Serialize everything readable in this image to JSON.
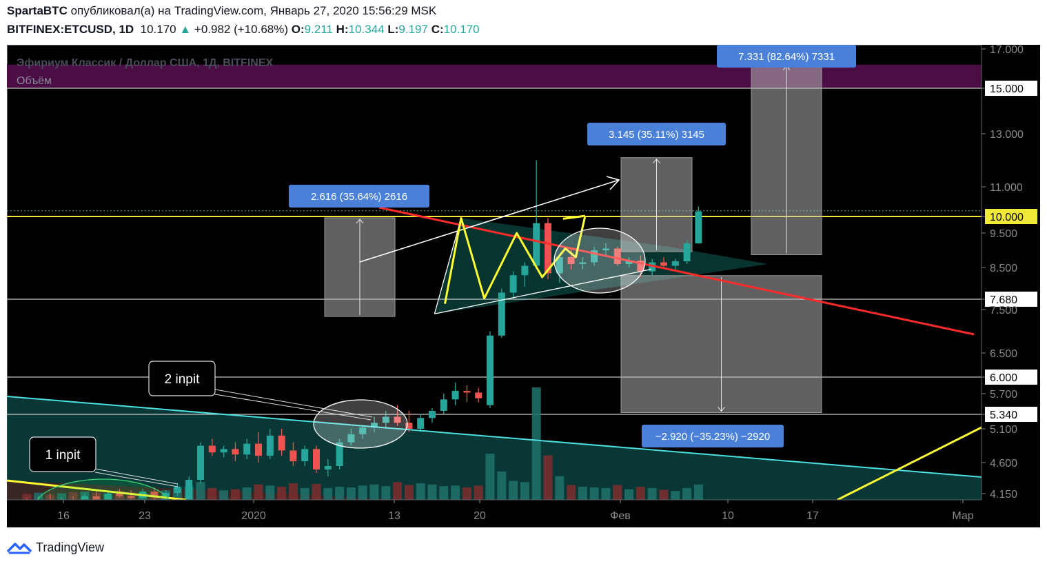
{
  "header": {
    "author": "SpartaBTC",
    "published_text": "опубликовал(а) на TradingView.com, Январь 27, 2020 15:56:29 MSK",
    "symbol": "BITFINEX:ETCUSD, 1D",
    "last": "10.170",
    "change": "+0.982 (+10.68%)",
    "o_label": "O:",
    "o": "9.211",
    "h_label": "H:",
    "h": "10.344",
    "l_label": "L:",
    "l": "9.197",
    "c_label": "C:",
    "c": "10.170"
  },
  "legend": {
    "series_title": "Эфириум Классик / Доллар США, 1Д, BITFINEX",
    "volume_title": "Объём"
  },
  "footer": {
    "brand": "TradingView",
    "icon": "tradingview-cloud-icon"
  },
  "colors": {
    "up": "#26a69a",
    "down": "#ef5350",
    "background": "#000000",
    "resistance": "#ff2a2a",
    "support": "#4ce0e0",
    "pattern": "#ffff33",
    "label_bg": "#4a80d8"
  },
  "chart_data": {
    "type": "candlestick",
    "price_axis_ticks": [
      "17.000",
      "15.000",
      "13.000",
      "11.000",
      "10.000",
      "9.500",
      "8.500",
      "7.680",
      "7.500",
      "6.500",
      "6.000",
      "5.700",
      "5.340",
      "5.100",
      "4.600",
      "4.150"
    ],
    "price_axis_highlighted": [
      "15.000",
      "10.000",
      "7.680",
      "6.000",
      "5.340"
    ],
    "time_axis_ticks": [
      "16",
      "23",
      "2020",
      "13",
      "20",
      "Фев",
      "10",
      "17",
      "Мар"
    ],
    "horizontal_levels": [
      15.0,
      10.0,
      7.68,
      6.0,
      5.34
    ],
    "measurements": [
      {
        "label": "2.616 (35.64%) 2616",
        "from": 7.34,
        "to": 9.96
      },
      {
        "label": "3.145 (35.11%) 3145",
        "from": 8.96,
        "to": 12.1
      },
      {
        "label": "7.331 (82.64%) 7331",
        "from": 8.87,
        "to": 16.2
      },
      {
        "label": "−2.920 (−35.23%) −2920",
        "from": 8.29,
        "to": 5.37
      }
    ],
    "annotations": [
      "1 inpit",
      "2 inpit"
    ],
    "candles": [
      {
        "o": 4.05,
        "h": 4.1,
        "l": 3.98,
        "c": 4.03,
        "v": 1.0
      },
      {
        "o": 4.03,
        "h": 4.12,
        "l": 3.96,
        "c": 4.08,
        "v": 1.2
      },
      {
        "o": 4.08,
        "h": 4.15,
        "l": 3.98,
        "c": 4.01,
        "v": 0.9
      },
      {
        "o": 4.01,
        "h": 4.1,
        "l": 3.95,
        "c": 4.06,
        "v": 1.1
      },
      {
        "o": 4.06,
        "h": 4.12,
        "l": 4.0,
        "c": 4.04,
        "v": 1.3
      },
      {
        "o": 4.04,
        "h": 4.15,
        "l": 3.99,
        "c": 4.12,
        "v": 1.4
      },
      {
        "o": 4.12,
        "h": 4.2,
        "l": 4.05,
        "c": 4.08,
        "v": 1.2
      },
      {
        "o": 4.08,
        "h": 4.18,
        "l": 4.02,
        "c": 4.15,
        "v": 1.1
      },
      {
        "o": 4.15,
        "h": 4.22,
        "l": 4.1,
        "c": 4.12,
        "v": 1.5
      },
      {
        "o": 4.12,
        "h": 4.2,
        "l": 4.04,
        "c": 4.1,
        "v": 1.3
      },
      {
        "o": 4.1,
        "h": 4.22,
        "l": 4.05,
        "c": 4.18,
        "v": 1.2
      },
      {
        "o": 4.18,
        "h": 4.24,
        "l": 4.08,
        "c": 4.12,
        "v": 1.4
      },
      {
        "o": 4.12,
        "h": 4.2,
        "l": 4.04,
        "c": 4.16,
        "v": 1.6
      },
      {
        "o": 4.16,
        "h": 4.3,
        "l": 4.12,
        "c": 4.25,
        "v": 2.0
      },
      {
        "o": 4.05,
        "h": 4.4,
        "l": 3.95,
        "c": 4.35,
        "v": 2.3
      },
      {
        "o": 4.35,
        "h": 4.9,
        "l": 4.3,
        "c": 4.85,
        "v": 3.0
      },
      {
        "o": 4.85,
        "h": 4.95,
        "l": 4.7,
        "c": 4.75,
        "v": 2.0
      },
      {
        "o": 4.75,
        "h": 4.85,
        "l": 4.68,
        "c": 4.8,
        "v": 1.6
      },
      {
        "o": 4.8,
        "h": 4.9,
        "l": 4.62,
        "c": 4.72,
        "v": 1.8
      },
      {
        "o": 4.72,
        "h": 4.95,
        "l": 4.65,
        "c": 4.88,
        "v": 2.1
      },
      {
        "o": 4.88,
        "h": 5.05,
        "l": 4.6,
        "c": 4.7,
        "v": 2.6
      },
      {
        "o": 4.7,
        "h": 5.1,
        "l": 4.65,
        "c": 5.0,
        "v": 2.4
      },
      {
        "o": 5.0,
        "h": 5.1,
        "l": 4.7,
        "c": 4.78,
        "v": 2.2
      },
      {
        "o": 4.78,
        "h": 4.9,
        "l": 4.55,
        "c": 4.62,
        "v": 2.8
      },
      {
        "o": 4.62,
        "h": 4.85,
        "l": 4.55,
        "c": 4.8,
        "v": 2.0
      },
      {
        "o": 4.8,
        "h": 4.85,
        "l": 4.45,
        "c": 4.5,
        "v": 2.7
      },
      {
        "o": 4.5,
        "h": 4.65,
        "l": 4.4,
        "c": 4.55,
        "v": 2.0
      },
      {
        "o": 4.55,
        "h": 4.95,
        "l": 4.5,
        "c": 4.9,
        "v": 2.2
      },
      {
        "o": 4.9,
        "h": 5.1,
        "l": 4.85,
        "c": 5.02,
        "v": 2.1
      },
      {
        "o": 5.02,
        "h": 5.15,
        "l": 4.95,
        "c": 5.12,
        "v": 2.4
      },
      {
        "o": 5.12,
        "h": 5.3,
        "l": 5.05,
        "c": 5.2,
        "v": 2.6
      },
      {
        "o": 5.2,
        "h": 5.4,
        "l": 5.1,
        "c": 5.3,
        "v": 2.3
      },
      {
        "o": 5.3,
        "h": 5.5,
        "l": 5.15,
        "c": 5.2,
        "v": 3.0
      },
      {
        "o": 5.2,
        "h": 5.4,
        "l": 5.05,
        "c": 5.1,
        "v": 2.5
      },
      {
        "o": 5.1,
        "h": 5.35,
        "l": 5.05,
        "c": 5.28,
        "v": 2.8
      },
      {
        "o": 5.28,
        "h": 5.45,
        "l": 5.2,
        "c": 5.4,
        "v": 2.6
      },
      {
        "o": 5.4,
        "h": 5.7,
        "l": 5.35,
        "c": 5.6,
        "v": 2.3
      },
      {
        "o": 5.6,
        "h": 5.9,
        "l": 5.5,
        "c": 5.75,
        "v": 2.4
      },
      {
        "o": 5.75,
        "h": 5.85,
        "l": 5.55,
        "c": 5.72,
        "v": 2.1
      },
      {
        "o": 5.72,
        "h": 5.8,
        "l": 5.55,
        "c": 5.62,
        "v": 2.4
      },
      {
        "o": 5.5,
        "h": 7.0,
        "l": 5.45,
        "c": 6.9,
        "v": 7.8
      },
      {
        "o": 6.9,
        "h": 7.95,
        "l": 6.85,
        "c": 7.85,
        "v": 4.8
      },
      {
        "o": 7.85,
        "h": 8.4,
        "l": 7.7,
        "c": 8.3,
        "v": 3.2
      },
      {
        "o": 8.3,
        "h": 8.65,
        "l": 8.0,
        "c": 8.55,
        "v": 3.0
      },
      {
        "o": 8.55,
        "h": 12.0,
        "l": 8.45,
        "c": 9.8,
        "v": 19.0
      },
      {
        "o": 9.8,
        "h": 9.95,
        "l": 8.2,
        "c": 8.35,
        "v": 7.5
      },
      {
        "o": 8.35,
        "h": 8.9,
        "l": 8.1,
        "c": 8.8,
        "v": 4.0
      },
      {
        "o": 8.8,
        "h": 9.05,
        "l": 8.45,
        "c": 8.6,
        "v": 2.5
      },
      {
        "o": 8.6,
        "h": 8.8,
        "l": 8.45,
        "c": 8.65,
        "v": 2.2
      },
      {
        "o": 8.65,
        "h": 9.1,
        "l": 8.55,
        "c": 9.0,
        "v": 2.1
      },
      {
        "o": 9.0,
        "h": 9.2,
        "l": 8.8,
        "c": 9.05,
        "v": 2.0
      },
      {
        "o": 9.05,
        "h": 9.1,
        "l": 8.55,
        "c": 8.6,
        "v": 2.5
      },
      {
        "o": 8.6,
        "h": 8.8,
        "l": 8.5,
        "c": 8.7,
        "v": 1.8
      },
      {
        "o": 8.7,
        "h": 8.85,
        "l": 8.25,
        "c": 8.4,
        "v": 2.2
      },
      {
        "o": 8.4,
        "h": 8.75,
        "l": 8.3,
        "c": 8.65,
        "v": 2.0
      },
      {
        "o": 8.65,
        "h": 8.8,
        "l": 8.5,
        "c": 8.55,
        "v": 1.7
      },
      {
        "o": 8.55,
        "h": 8.75,
        "l": 8.45,
        "c": 8.68,
        "v": 1.5
      },
      {
        "o": 8.68,
        "h": 9.3,
        "l": 8.6,
        "c": 9.2,
        "v": 2.0
      },
      {
        "o": 9.2,
        "h": 10.34,
        "l": 9.19,
        "c": 10.17,
        "v": 2.6
      }
    ]
  }
}
